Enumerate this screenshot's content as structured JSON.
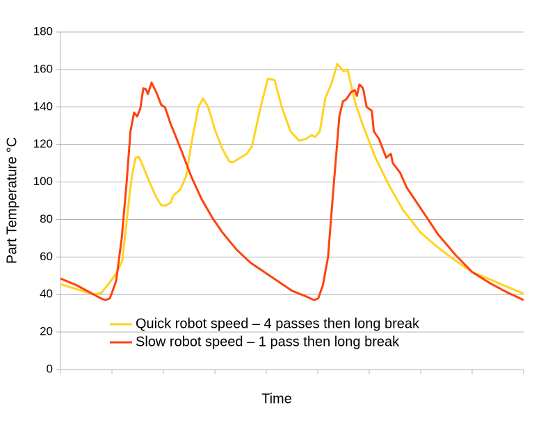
{
  "chart_data": {
    "type": "line",
    "xlabel": "Time",
    "ylabel": "Part Temperature  °C",
    "xlim": [
      0,
      90
    ],
    "xticks": [
      0,
      10,
      20,
      30,
      40,
      50,
      60,
      70,
      80,
      90
    ],
    "ylim": [
      0,
      180
    ],
    "yticks": [
      0,
      20,
      40,
      60,
      80,
      100,
      120,
      140,
      160,
      180
    ],
    "grid": true,
    "legend": "bottom",
    "series": [
      {
        "name": "Quick robot speed – 4 passes then long break",
        "color": "#ffd320",
        "x": [
          0,
          3,
          6.5,
          8,
          10,
          11,
          12,
          12.5,
          13.5,
          14,
          14.6,
          15.2,
          15.8,
          17.3,
          18.6,
          19.6,
          20.5,
          21.4,
          22,
          23.3,
          24.4,
          25.4,
          26.8,
          27.7,
          28.7,
          30,
          31.4,
          32.8,
          33.5,
          36.2,
          37.2,
          38.9,
          40.3,
          41.6,
          43,
          44.7,
          46.4,
          47.7,
          48.8,
          49.5,
          50.4,
          51.5,
          52.6,
          53.8,
          55,
          55.8,
          57.2,
          58.8,
          61.2,
          63.9,
          66.6,
          70,
          73.4,
          76.8,
          80,
          83.5,
          86.9,
          90
        ],
        "values": [
          45.5,
          43,
          40,
          41,
          48,
          52,
          58,
          70,
          95,
          105,
          113,
          113.5,
          110,
          100,
          92,
          87.5,
          87.5,
          89,
          93,
          96,
          103,
          120,
          140,
          144.5,
          140,
          128,
          118,
          111,
          110.5,
          115,
          119,
          140,
          155,
          154.5,
          140,
          127,
          122,
          123,
          125,
          124,
          127,
          145,
          152,
          163,
          159,
          160,
          143,
          130,
          113,
          98,
          85,
          73,
          65,
          58,
          52,
          48,
          44,
          40.5
        ]
      },
      {
        "name": "Slow robot speed – 1 pass then long break",
        "color": "#ff420e",
        "x": [
          0,
          3.1,
          5.8,
          7.8,
          8.8,
          9.6,
          10.8,
          11.9,
          12.8,
          13.6,
          14.3,
          14.9,
          15.5,
          16.1,
          16.6,
          17,
          17.7,
          18.6,
          19.6,
          20.3,
          21.4,
          22.3,
          23.6,
          25.4,
          27.4,
          29.5,
          31.5,
          34.2,
          36.9,
          39.6,
          42.3,
          45,
          47.7,
          49.3,
          50.1,
          51,
          52,
          53,
          54.2,
          54.9,
          55.5,
          56.5,
          57.2,
          57.6,
          58.1,
          58.8,
          59.5,
          60.5,
          60.9,
          61.9,
          63.3,
          64.2,
          64.6,
          66,
          67.3,
          70,
          73.4,
          76.8,
          80,
          83.5,
          86.9,
          88.9,
          90
        ],
        "values": [
          48.5,
          45,
          41,
          38,
          37,
          38,
          47,
          70,
          98,
          127,
          137,
          135,
          139,
          150,
          149.5,
          147,
          153,
          148,
          141,
          140,
          131,
          125,
          116,
          103,
          91,
          81,
          73,
          64,
          57,
          52,
          47,
          42,
          39,
          37,
          38,
          45,
          60,
          95,
          135,
          143,
          144,
          148,
          149,
          146,
          152,
          150,
          140,
          138,
          127,
          123,
          113,
          115,
          110,
          105,
          97,
          86,
          72,
          61,
          52,
          46,
          41,
          38.5,
          37
        ]
      }
    ]
  }
}
